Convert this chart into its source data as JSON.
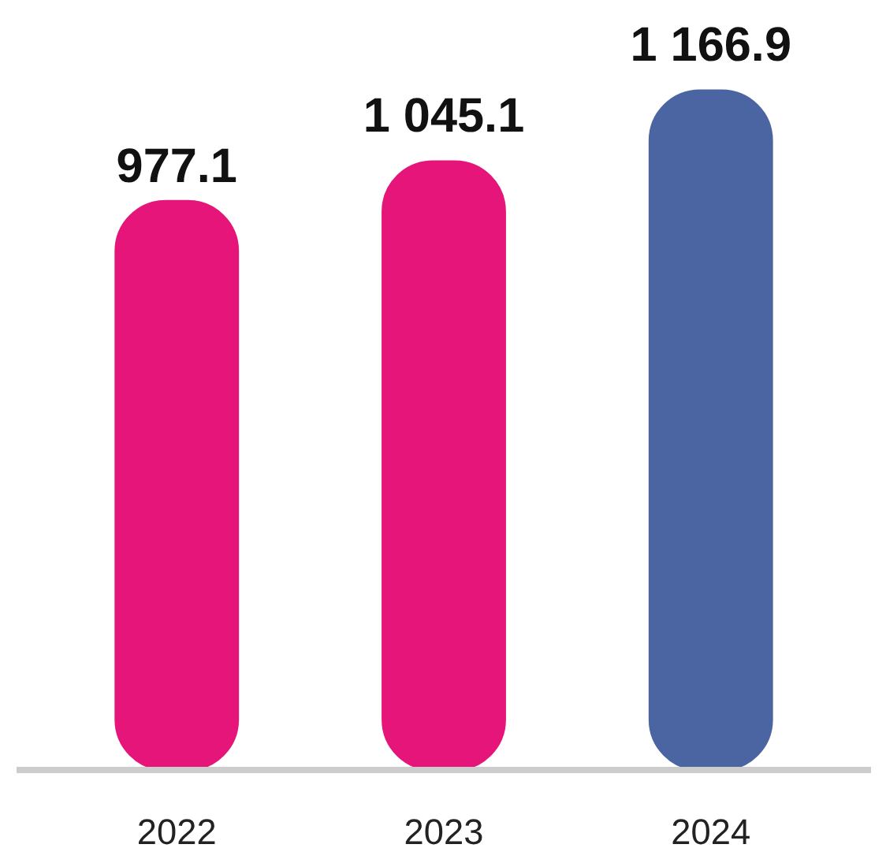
{
  "chart_data": {
    "type": "bar",
    "categories": [
      "2022",
      "2023",
      "2024"
    ],
    "values": [
      977.1,
      1045.1,
      1166.9
    ],
    "colors": [
      "#e5157a",
      "#e5157a",
      "#4b64a2"
    ],
    "value_labels": [
      "977.1",
      "1 045.1",
      "1 166.9"
    ],
    "grid": false,
    "tick_labels": "x"
  }
}
